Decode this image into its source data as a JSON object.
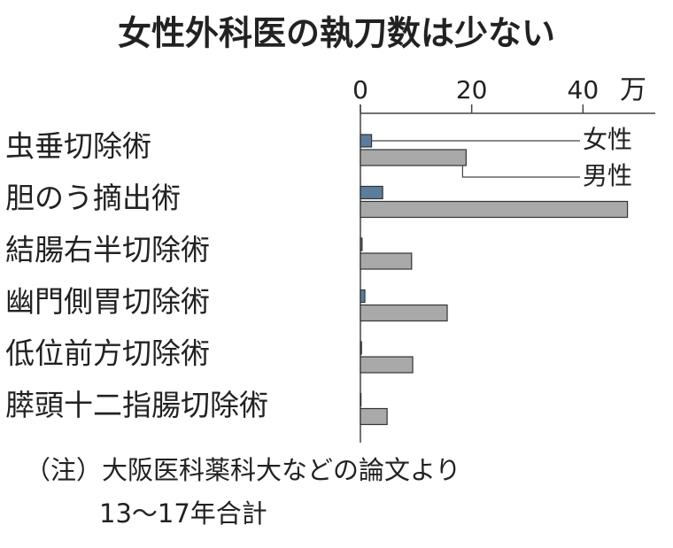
{
  "chart_data": {
    "type": "hbar-grouped",
    "title": "女性外科医の執刀数は少ない",
    "x_unit": "万",
    "categories": [
      "虫垂切除術",
      "胆のう摘出術",
      "結腸右半切除術",
      "幽門側胃切除術",
      "低位前方切除術",
      "膵頭十二指腸切除術"
    ],
    "series": [
      {
        "name": "女性",
        "color": "#5b7d9c",
        "values": [
          2,
          4,
          0.3,
          0.8,
          0.2,
          0.1
        ]
      },
      {
        "name": "男性",
        "color": "#a9a9a9",
        "values": [
          19,
          48,
          9.2,
          15.6,
          9.4,
          4.8
        ]
      }
    ],
    "xlim": [
      0,
      53
    ],
    "xticks": [
      0,
      20,
      40
    ],
    "notes": [
      "（注）大阪医科薬科大などの論文より",
      "13〜17年合計"
    ]
  }
}
